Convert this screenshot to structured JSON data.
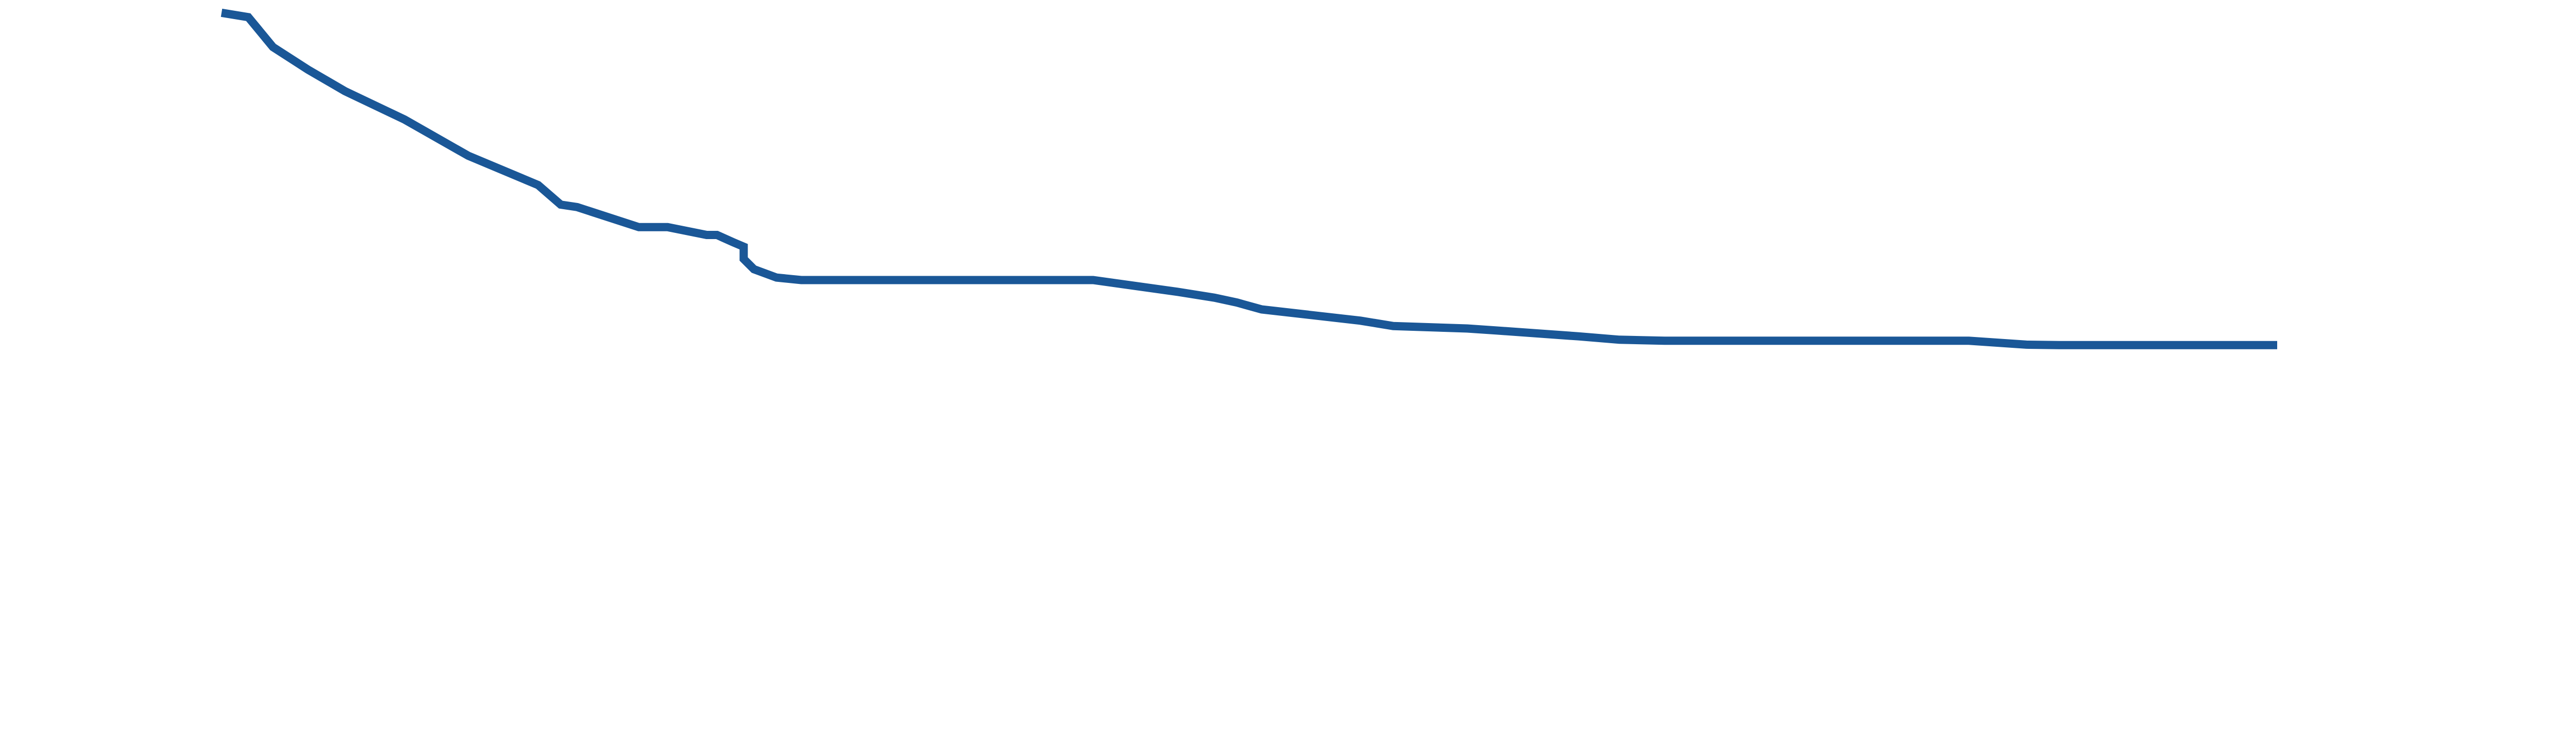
{
  "chart_data": {
    "type": "line",
    "title": "",
    "xlabel": "",
    "ylabel": "",
    "grid": false,
    "legend": "none",
    "color": "#1a5797",
    "xlim": [
      0,
      100
    ],
    "ylim": [
      0,
      100
    ],
    "series": [
      {
        "name": "",
        "x": [
          0,
          1.3,
          2.5,
          4.2,
          6.0,
          8.9,
          12.0,
          15.4,
          16.5,
          17.3,
          20.3,
          21.7,
          23.6,
          24.1,
          24.9,
          25.4,
          25.4,
          25.9,
          27.0,
          28.2,
          28.4,
          31.0,
          32.0,
          37.5,
          41.0,
          42.4,
          46.5,
          48.3,
          49.4,
          50.6,
          55.4,
          57.0,
          60.6,
          62.0,
          66.0,
          68.0,
          70.2,
          73.0,
          75.0,
          78.7,
          80.1,
          85.0,
          87.8,
          89.4,
          95.4,
          96.5,
          100.0
        ],
        "y": [
          99.5,
          98.6,
          92.5,
          87.9,
          83.5,
          77.7,
          70.3,
          64.3,
          60.3,
          59.8,
          55.7,
          55.7,
          54.1,
          54.1,
          52.6,
          51.7,
          49.2,
          47.1,
          45.4,
          44.9,
          44.9,
          44.9,
          44.9,
          44.9,
          44.9,
          44.9,
          42.5,
          41.3,
          40.3,
          38.9,
          36.6,
          35.5,
          35.0,
          34.6,
          33.4,
          32.7,
          32.5,
          32.5,
          32.5,
          32.5,
          32.5,
          32.5,
          31.7,
          31.6,
          31.6,
          31.6,
          31.6
        ]
      }
    ]
  }
}
